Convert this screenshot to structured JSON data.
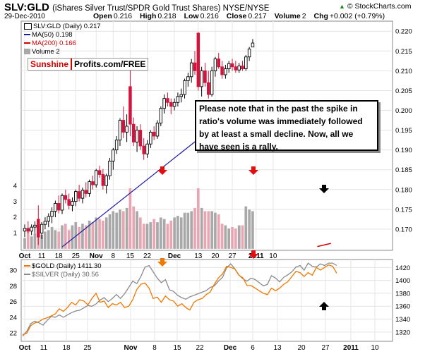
{
  "header": {
    "symbol": "SLV:GLD",
    "description": "(iShares Silver Trust/SPDR Gold Trust Shares) NYSE/NYSE",
    "date": "29-Dec-2010",
    "brand": "© StockCharts.com",
    "ohlc": {
      "open_label": "Open",
      "open": "0.216",
      "high_label": "High",
      "high": "0.218",
      "low_label": "Low",
      "low": "0.216",
      "close_label": "Close",
      "close": "0.217",
      "volume_label": "Volume",
      "volume": "2",
      "chg_label": "Chg",
      "chg": "+0.002 (+0.79%)"
    }
  },
  "legend_top": {
    "main": "SLV:GLD (Daily) 0.217",
    "ma50": "MA(50) 0.198",
    "ma200": "MA(200) 0.166",
    "volume": "Volume 2"
  },
  "legend_bottom": {
    "gold": "$GOLD (Daily) 1411.30",
    "silver": "$SILVER (Daily) 30.56"
  },
  "signature": {
    "part1": "Sunshine",
    "part2": "Profits.com/FREE"
  },
  "note": "Please note that in the past the spike in ratio's volume was immediately followed by at least a small decline. Now, all we have seen is a rally.",
  "colors": {
    "up": "#000000",
    "down": "#d4143c",
    "ma50": "#1a1aa0",
    "ma200": "#d40000",
    "vol_up": "#a8a8a8",
    "vol_down": "#e9a6b2",
    "gold": "#f07800",
    "silver": "#8a8a8a",
    "arrow_red": "#e01010",
    "arrow_orange": "#f07800",
    "arrow_black": "#000000"
  },
  "chart_data": [
    {
      "type": "candlestick",
      "title": "SLV:GLD",
      "y_axis": "right",
      "ylim": [
        0.165,
        0.222
      ],
      "yticks": [
        "0.220",
        "0.215",
        "0.210",
        "0.205",
        "0.200",
        "0.195",
        "0.190",
        "0.185",
        "0.180",
        "0.175",
        "0.170"
      ],
      "xticks": [
        "Oct",
        "11",
        "18",
        "25",
        "Nov",
        "8",
        "15",
        "22",
        "Dec",
        "13",
        "20",
        "27",
        "2011",
        "10"
      ],
      "ma50_endpoints": [
        [
          11,
          0.1655
        ],
        [
          58,
          0.1975
        ]
      ],
      "ma200_endpoints": [
        [
          86,
          0.1656
        ],
        [
          90,
          0.1664
        ]
      ],
      "candles": [
        {
          "o": 0.1695,
          "h": 0.1712,
          "l": 0.168,
          "c": 0.1702,
          "up": true
        },
        {
          "o": 0.1702,
          "h": 0.172,
          "l": 0.169,
          "c": 0.1695,
          "up": false
        },
        {
          "o": 0.1695,
          "h": 0.1712,
          "l": 0.1685,
          "c": 0.1705,
          "up": true
        },
        {
          "o": 0.1705,
          "h": 0.172,
          "l": 0.169,
          "c": 0.171,
          "up": true
        },
        {
          "o": 0.1725,
          "h": 0.176,
          "l": 0.166,
          "c": 0.168,
          "up": false
        },
        {
          "o": 0.169,
          "h": 0.1718,
          "l": 0.1675,
          "c": 0.1712,
          "up": true
        },
        {
          "o": 0.1712,
          "h": 0.173,
          "l": 0.17,
          "c": 0.172,
          "up": true
        },
        {
          "o": 0.172,
          "h": 0.174,
          "l": 0.1705,
          "c": 0.1732,
          "up": true
        },
        {
          "o": 0.1732,
          "h": 0.1755,
          "l": 0.1715,
          "c": 0.1745,
          "up": true
        },
        {
          "o": 0.1745,
          "h": 0.1772,
          "l": 0.173,
          "c": 0.1765,
          "up": true
        },
        {
          "o": 0.1765,
          "h": 0.1785,
          "l": 0.174,
          "c": 0.1748,
          "up": false
        },
        {
          "o": 0.1748,
          "h": 0.179,
          "l": 0.1738,
          "c": 0.1785,
          "up": true
        },
        {
          "o": 0.1785,
          "h": 0.18,
          "l": 0.1765,
          "c": 0.1775,
          "up": false
        },
        {
          "o": 0.1775,
          "h": 0.179,
          "l": 0.175,
          "c": 0.176,
          "up": false
        },
        {
          "o": 0.176,
          "h": 0.178,
          "l": 0.1745,
          "c": 0.177,
          "up": true
        },
        {
          "o": 0.177,
          "h": 0.18,
          "l": 0.1758,
          "c": 0.1795,
          "up": true
        },
        {
          "o": 0.1795,
          "h": 0.1812,
          "l": 0.177,
          "c": 0.1778,
          "up": false
        },
        {
          "o": 0.1778,
          "h": 0.1805,
          "l": 0.1765,
          "c": 0.1798,
          "up": true
        },
        {
          "o": 0.1798,
          "h": 0.1818,
          "l": 0.178,
          "c": 0.179,
          "up": false
        },
        {
          "o": 0.179,
          "h": 0.1825,
          "l": 0.1782,
          "c": 0.182,
          "up": true
        },
        {
          "o": 0.182,
          "h": 0.1835,
          "l": 0.18,
          "c": 0.1812,
          "up": false
        },
        {
          "o": 0.1812,
          "h": 0.1852,
          "l": 0.1805,
          "c": 0.1848,
          "up": true
        },
        {
          "o": 0.1848,
          "h": 0.186,
          "l": 0.183,
          "c": 0.1838,
          "up": false
        },
        {
          "o": 0.1838,
          "h": 0.1852,
          "l": 0.18,
          "c": 0.181,
          "up": false
        },
        {
          "o": 0.181,
          "h": 0.184,
          "l": 0.179,
          "c": 0.1835,
          "up": true
        },
        {
          "o": 0.1835,
          "h": 0.188,
          "l": 0.1825,
          "c": 0.1872,
          "up": true
        },
        {
          "o": 0.1872,
          "h": 0.1905,
          "l": 0.185,
          "c": 0.19,
          "up": true
        },
        {
          "o": 0.19,
          "h": 0.1935,
          "l": 0.189,
          "c": 0.1925,
          "up": true
        },
        {
          "o": 0.1925,
          "h": 0.198,
          "l": 0.191,
          "c": 0.1975,
          "up": true
        },
        {
          "o": 0.1975,
          "h": 0.201,
          "l": 0.193,
          "c": 0.1945,
          "up": false
        },
        {
          "o": 0.1945,
          "h": 0.199,
          "l": 0.192,
          "c": 0.196,
          "up": true
        },
        {
          "o": 0.206,
          "h": 0.2125,
          "l": 0.1935,
          "c": 0.1965,
          "up": false
        },
        {
          "o": 0.1965,
          "h": 0.1982,
          "l": 0.191,
          "c": 0.192,
          "up": false
        },
        {
          "o": 0.192,
          "h": 0.196,
          "l": 0.1895,
          "c": 0.195,
          "up": true
        },
        {
          "o": 0.195,
          "h": 0.1965,
          "l": 0.19,
          "c": 0.191,
          "up": false
        },
        {
          "o": 0.191,
          "h": 0.193,
          "l": 0.1875,
          "c": 0.189,
          "up": false
        },
        {
          "o": 0.189,
          "h": 0.1925,
          "l": 0.188,
          "c": 0.1915,
          "up": true
        },
        {
          "o": 0.1915,
          "h": 0.195,
          "l": 0.1905,
          "c": 0.1945,
          "up": true
        },
        {
          "o": 0.1945,
          "h": 0.196,
          "l": 0.1925,
          "c": 0.1935,
          "up": false
        },
        {
          "o": 0.1935,
          "h": 0.1975,
          "l": 0.1928,
          "c": 0.1968,
          "up": true
        },
        {
          "o": 0.1968,
          "h": 0.201,
          "l": 0.196,
          "c": 0.2005,
          "up": true
        },
        {
          "o": 0.2005,
          "h": 0.204,
          "l": 0.1992,
          "c": 0.203,
          "up": true
        },
        {
          "o": 0.203,
          "h": 0.2045,
          "l": 0.201,
          "c": 0.202,
          "up": false
        },
        {
          "o": 0.202,
          "h": 0.203,
          "l": 0.199,
          "c": 0.201,
          "up": false
        },
        {
          "o": 0.201,
          "h": 0.203,
          "l": 0.2,
          "c": 0.202,
          "up": true
        },
        {
          "o": 0.202,
          "h": 0.2045,
          "l": 0.201,
          "c": 0.2035,
          "up": true
        },
        {
          "o": 0.2035,
          "h": 0.2055,
          "l": 0.202,
          "c": 0.204,
          "up": true
        },
        {
          "o": 0.204,
          "h": 0.208,
          "l": 0.203,
          "c": 0.2075,
          "up": true
        },
        {
          "o": 0.2075,
          "h": 0.2095,
          "l": 0.206,
          "c": 0.2085,
          "up": true
        },
        {
          "o": 0.2085,
          "h": 0.213,
          "l": 0.207,
          "c": 0.212,
          "up": true
        },
        {
          "o": 0.212,
          "h": 0.215,
          "l": 0.209,
          "c": 0.21,
          "up": false
        },
        {
          "o": 0.2195,
          "h": 0.2198,
          "l": 0.205,
          "c": 0.206,
          "up": false
        },
        {
          "o": 0.206,
          "h": 0.211,
          "l": 0.2035,
          "c": 0.21,
          "up": true
        },
        {
          "o": 0.21,
          "h": 0.212,
          "l": 0.206,
          "c": 0.207,
          "up": false
        },
        {
          "o": 0.207,
          "h": 0.21,
          "l": 0.203,
          "c": 0.204,
          "up": false
        },
        {
          "o": 0.204,
          "h": 0.211,
          "l": 0.2035,
          "c": 0.21,
          "up": true
        },
        {
          "o": 0.21,
          "h": 0.2135,
          "l": 0.2085,
          "c": 0.213,
          "up": true
        },
        {
          "o": 0.213,
          "h": 0.2145,
          "l": 0.2105,
          "c": 0.211,
          "up": false
        },
        {
          "o": 0.211,
          "h": 0.2125,
          "l": 0.208,
          "c": 0.209,
          "up": false
        },
        {
          "o": 0.209,
          "h": 0.2115,
          "l": 0.208,
          "c": 0.2105,
          "up": true
        },
        {
          "o": 0.2105,
          "h": 0.2125,
          "l": 0.2095,
          "c": 0.2118,
          "up": true
        },
        {
          "o": 0.2118,
          "h": 0.213,
          "l": 0.21,
          "c": 0.211,
          "up": false
        },
        {
          "o": 0.211,
          "h": 0.2125,
          "l": 0.2095,
          "c": 0.2102,
          "up": false
        },
        {
          "o": 0.2102,
          "h": 0.212,
          "l": 0.2095,
          "c": 0.2112,
          "up": true
        },
        {
          "o": 0.2112,
          "h": 0.2125,
          "l": 0.21,
          "c": 0.2105,
          "up": false
        },
        {
          "o": 0.2105,
          "h": 0.214,
          "l": 0.21,
          "c": 0.2135,
          "up": true
        },
        {
          "o": 0.2135,
          "h": 0.216,
          "l": 0.2125,
          "c": 0.2155,
          "up": true
        },
        {
          "o": 0.216,
          "h": 0.218,
          "l": 0.216,
          "c": 0.217,
          "up": true
        }
      ],
      "volume": {
        "yticks": [
          "4",
          "3",
          "2",
          "1"
        ],
        "ylim": [
          0,
          4.6
        ],
        "values": [
          0.7,
          1.2,
          0.8,
          1.0,
          1.6,
          0.9,
          1.1,
          1.2,
          1.4,
          1.2,
          1.1,
          1.5,
          1.6,
          1.2,
          1.5,
          1.7,
          1.4,
          1.6,
          1.5,
          1.8,
          1.7,
          2.0,
          1.9,
          1.8,
          2.0,
          2.2,
          2.4,
          2.3,
          2.5,
          2.4,
          2.6,
          3.85,
          2.7,
          2.4,
          2.0,
          1.6,
          1.6,
          1.7,
          1.9,
          1.7,
          2.0,
          1.9,
          1.6,
          1.8,
          2.0,
          2.1,
          2.0,
          2.3,
          2.3,
          2.4,
          2.6,
          3.85,
          2.6,
          2.4,
          2.4,
          2.4,
          2.3,
          2.2,
          1.6,
          1.5,
          1.3,
          1.4,
          1.3,
          1.5,
          1.5,
          2.7,
          2.5,
          2.4
        ]
      }
    },
    {
      "type": "line",
      "series": [
        {
          "name": "$GOLD (Daily) 1411.30",
          "axis": "right",
          "values": [
            1316,
            1318,
            1330,
            1334,
            1336,
            1340,
            1342,
            1345,
            1348,
            1356,
            1352,
            1358,
            1366,
            1362,
            1370,
            1368,
            1362,
            1372,
            1380,
            1366,
            1368,
            1358,
            1364,
            1362,
            1366,
            1358,
            1360,
            1370,
            1386,
            1394,
            1396,
            1388,
            1372,
            1374,
            1366,
            1376,
            1370,
            1368,
            1360,
            1364,
            1358,
            1354,
            1366,
            1370,
            1372,
            1378,
            1382,
            1394,
            1404,
            1410,
            1422,
            1420,
            1418,
            1408,
            1404,
            1392,
            1392,
            1388,
            1384,
            1380,
            1378,
            1388,
            1384,
            1388,
            1394,
            1398,
            1406,
            1414,
            1412,
            1406,
            1412,
            1408,
            1420,
            1416,
            1420,
            1424,
            1422,
            1411
          ]
        },
        {
          "name": "$SILVER (Daily) 30.56",
          "axis": "left",
          "values": [
            21.6,
            22.2,
            23.2,
            23.5,
            23.3,
            23.0,
            23.6,
            24.1,
            24.0,
            24.3,
            24.0,
            24.3,
            24.6,
            24.8,
            24.9,
            25.2,
            25.5,
            25.4,
            25.7,
            26.2,
            26.5,
            26.0,
            26.4,
            26.9,
            26.4,
            27.0,
            27.8,
            28.6,
            28.3,
            29.2,
            30.4,
            30.6,
            29.8,
            29.0,
            28.4,
            28.8,
            27.5,
            27.3,
            26.8,
            26.5,
            26.3,
            26.6,
            26.8,
            27.0,
            27.2,
            27.4,
            27.8,
            28.0,
            28.6,
            29.1,
            30.3,
            30.8,
            30.2,
            29.4,
            28.9,
            28.6,
            29.0,
            28.8,
            28.4,
            28.0,
            28.2,
            29.3,
            29.0,
            28.5,
            29.1,
            29.4,
            29.8,
            30.4,
            30.6,
            30.0,
            30.9,
            30.5,
            30.4,
            30.8,
            30.6,
            30.9,
            30.9,
            30.6
          ]
        }
      ],
      "left_yticks": [
        "30",
        "28",
        "26",
        "24",
        "22"
      ],
      "left_ylim": [
        21.3,
        31.0
      ],
      "right_yticks": [
        "1420",
        "1400",
        "1380",
        "1360",
        "1340",
        "1320"
      ],
      "right_ylim": [
        1310,
        1428
      ],
      "xticks": [
        "Oct",
        "11",
        "18",
        "25",
        "Nov",
        "8",
        "15",
        "22",
        "Dec",
        "6",
        "13",
        "20",
        "27",
        "2011",
        "10"
      ]
    }
  ]
}
